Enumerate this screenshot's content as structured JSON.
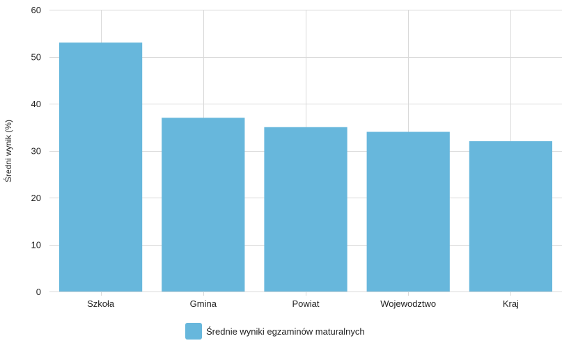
{
  "chart_data": {
    "type": "bar",
    "categories": [
      "Szkoła",
      "Gmina",
      "Powiat",
      "Wojewodztwo",
      "Kraj"
    ],
    "series": [
      {
        "name": "Średnie wyniki egzaminów maturalnych",
        "values": [
          53,
          37,
          35,
          34,
          32
        ]
      }
    ],
    "ylabel": "Średni wynik (%)",
    "xlabel": "",
    "ylim": [
      0,
      60
    ],
    "yticks": [
      0,
      10,
      20,
      30,
      40,
      50,
      60
    ],
    "grid": true,
    "legend": "bottom-center",
    "bar_color": "#67b7dc"
  }
}
